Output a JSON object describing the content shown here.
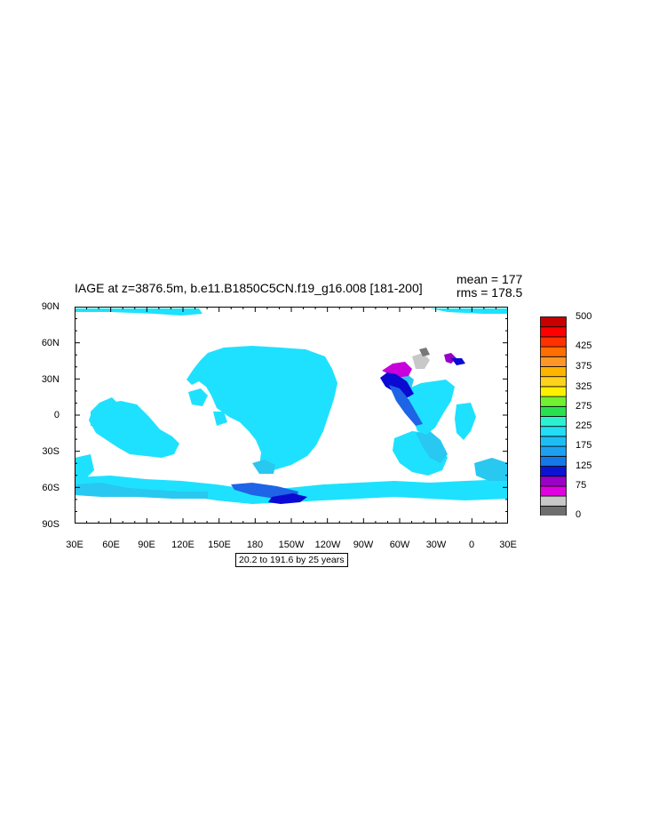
{
  "title": "IAGE at z=3876.5m, b.e11.B1850C5CN.f19_g16.008 [181-200]",
  "stats": {
    "mean": "mean = 177",
    "rms": "rms = 178.5"
  },
  "info_box": "20.2 to 191.6 by 25 years",
  "lat_labels": [
    "90N",
    "60N",
    "30N",
    "0",
    "30S",
    "60S",
    "90S"
  ],
  "lon_labels": [
    "30E",
    "60E",
    "90E",
    "120E",
    "150E",
    "180",
    "150W",
    "120W",
    "90W",
    "60W",
    "30W",
    "0",
    "30E"
  ],
  "colorbar": {
    "labels": [
      "500",
      "425",
      "375",
      "325",
      "275",
      "225",
      "175",
      "125",
      "75",
      "0"
    ],
    "colors": [
      "#6e6e6e",
      "#c8c8c8",
      "#e000e0",
      "#9a00c8",
      "#0a14d2",
      "#1478e6",
      "#1ea0f0",
      "#1ebef5",
      "#24dcf5",
      "#2cf0d0",
      "#28e050",
      "#70f030",
      "#fff000",
      "#ffd21e",
      "#ffb400",
      "#ff9628",
      "#ff6e00",
      "#ff3200",
      "#ff0000",
      "#c80000"
    ]
  },
  "map_colors": {
    "light": "#1ee1ff",
    "mid": "#28c8f0",
    "blue": "#1e64e6",
    "dark": "#0a0ad2",
    "purple": "#c800dc",
    "violet": "#9600c8",
    "gray": "#c8c8c8",
    "darkgray": "#787878"
  }
}
